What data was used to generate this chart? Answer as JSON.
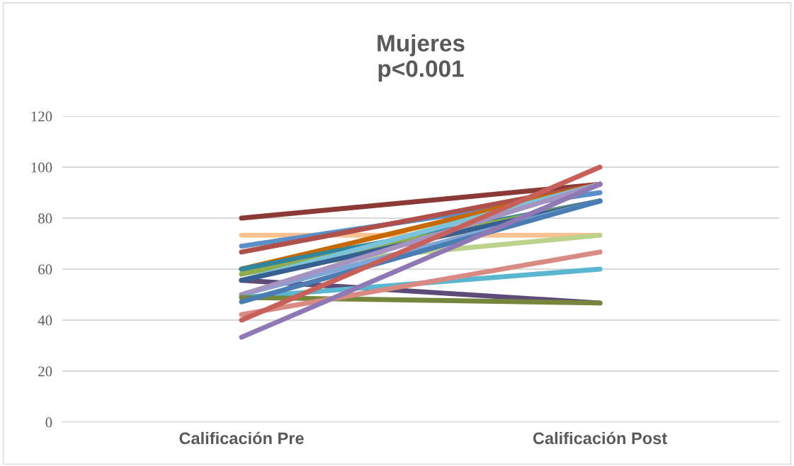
{
  "chart_data": {
    "type": "line",
    "title": "Mujeres\np<0.001",
    "categories": [
      "Calificación Pre",
      "Calificación Post"
    ],
    "ylim": [
      0,
      120
    ],
    "yticks": [
      0,
      20,
      40,
      60,
      80,
      100,
      120
    ],
    "grid": "y",
    "legend": false,
    "marker": "none",
    "line_style": "solid",
    "series": [
      {
        "color": "#8b3a36",
        "values": [
          80,
          93.3
        ]
      },
      {
        "color": "#fac08f",
        "values": [
          73.3,
          73.3
        ]
      },
      {
        "color": "#5b8fc9",
        "values": [
          69,
          90
        ]
      },
      {
        "color": "#b0504a",
        "values": [
          66.7,
          93.3
        ]
      },
      {
        "color": "#bcd38c",
        "values": [
          60,
          73.3
        ]
      },
      {
        "color": "#c66a00",
        "values": [
          60,
          93.3
        ]
      },
      {
        "color": "#31859c",
        "values": [
          60,
          86.7
        ]
      },
      {
        "color": "#8fac4e",
        "values": [
          58,
          86.7
        ]
      },
      {
        "color": "#7cc2d8",
        "values": [
          55.6,
          93.3
        ]
      },
      {
        "color": "#5f4b78",
        "values": [
          55.6,
          46.7
        ]
      },
      {
        "color": "#376092",
        "values": [
          55.6,
          86.7
        ]
      },
      {
        "color": "#7ea6d6",
        "values": [
          50,
          86.7
        ]
      },
      {
        "color": "#a593c2",
        "values": [
          50,
          93.3
        ]
      },
      {
        "color": "#5bb6d0",
        "values": [
          48.9,
          60
        ]
      },
      {
        "color": "#76873d",
        "values": [
          48.9,
          46.7
        ]
      },
      {
        "color": "#4a7db4",
        "values": [
          47.2,
          86.7
        ]
      },
      {
        "color": "#d98a83",
        "values": [
          42.2,
          66.7
        ]
      },
      {
        "color": "#c95f59",
        "values": [
          40,
          100
        ]
      },
      {
        "color": "#8f79b5",
        "values": [
          33.3,
          93.3
        ]
      }
    ]
  }
}
